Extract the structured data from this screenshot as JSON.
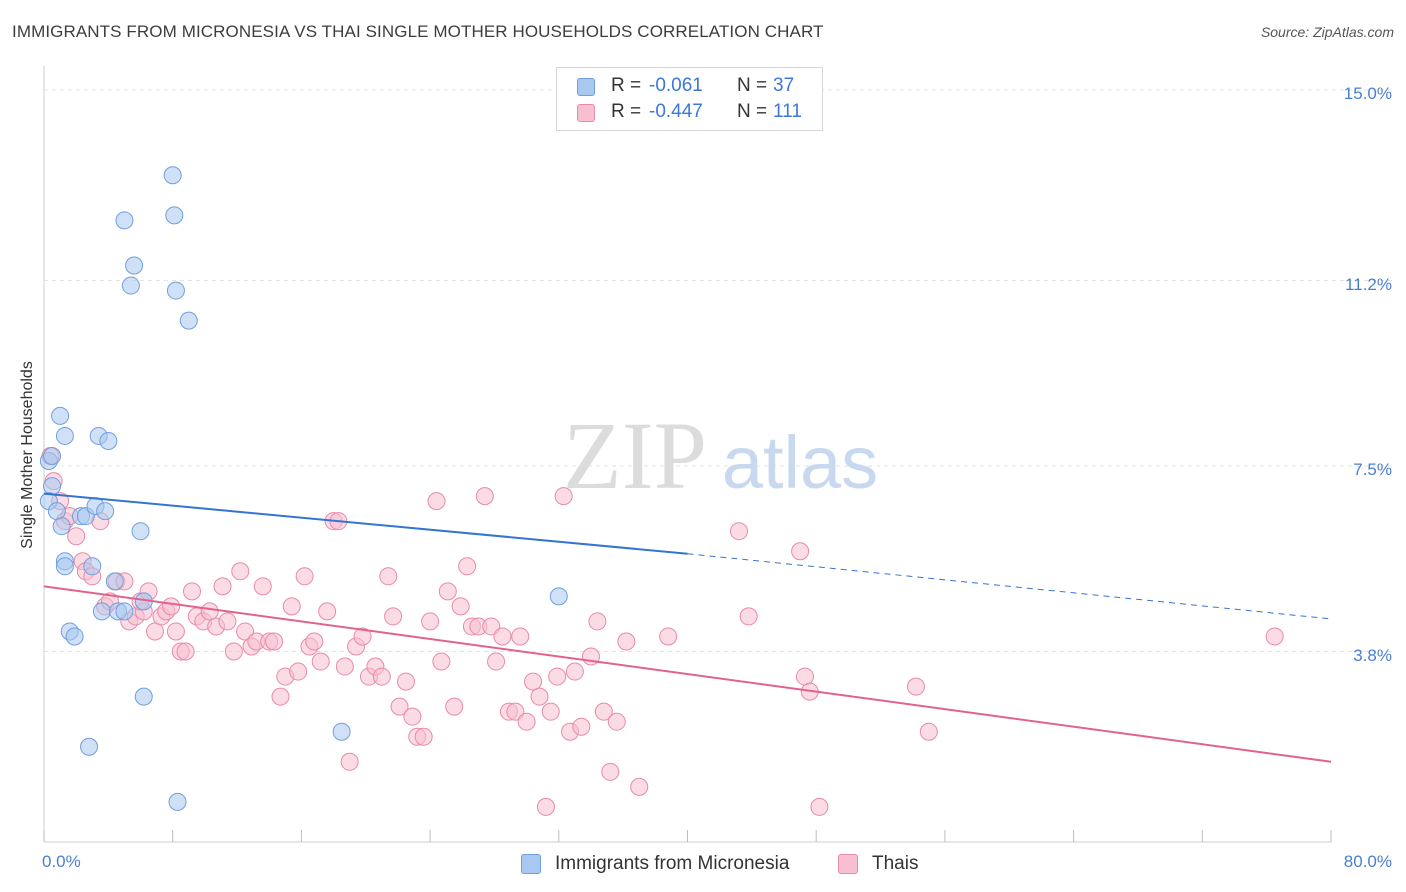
{
  "header": {
    "title": "IMMIGRANTS FROM MICRONESIA VS THAI SINGLE MOTHER HOUSEHOLDS CORRELATION CHART",
    "source": "Source: ZipAtlas.com"
  },
  "watermark": {
    "zip": "ZIP",
    "atlas": "atlas"
  },
  "legend": {
    "series": [
      {
        "r_label": "R =",
        "r_value": "-0.061",
        "n_label": "N =",
        "n_value": "37",
        "color": "#a9c8f0",
        "edge": "#6f9fde"
      },
      {
        "r_label": "R =",
        "r_value": "-0.447",
        "n_label": "N =",
        "n_value": "111",
        "color": "#f7bfd0",
        "edge": "#e88aa8"
      }
    ]
  },
  "bottom_legend": [
    {
      "label": "Immigrants from Micronesia",
      "color": "#a9c8f0",
      "edge": "#6f9fde"
    },
    {
      "label": "Thais",
      "color": "#f7bfd0",
      "edge": "#e88aa8"
    }
  ],
  "chart_data": {
    "type": "scatter",
    "title": "IMMIGRANTS FROM MICRONESIA VS THAI SINGLE MOTHER HOUSEHOLDS CORRELATION CHART",
    "xlabel": "",
    "ylabel": "Single Mother Households",
    "xlim": [
      0,
      80
    ],
    "ylim": [
      0,
      15.4
    ],
    "x_tick_labels": [
      "0.0%",
      "80.0%"
    ],
    "y_ticks": [
      {
        "value": 3.8,
        "label": "3.8%"
      },
      {
        "value": 7.5,
        "label": "7.5%"
      },
      {
        "value": 11.2,
        "label": "11.2%"
      },
      {
        "value": 15.0,
        "label": "15.0%"
      }
    ],
    "grid": true,
    "legend_position": "top-center",
    "series": [
      {
        "name": "Immigrants from Micronesia",
        "color": "#a9c8f0",
        "edge": "#6f9fde",
        "trend_color": "#3674d1",
        "trend": {
          "x0": 0,
          "y0": 6.95,
          "x1": 40,
          "y1": 5.75,
          "dash_x1": 80,
          "dash_y1": 4.45
        },
        "points": [
          [
            0.3,
            7.6
          ],
          [
            0.5,
            7.7
          ],
          [
            0.5,
            7.1
          ],
          [
            0.3,
            6.8
          ],
          [
            0.8,
            6.6
          ],
          [
            1.0,
            8.5
          ],
          [
            1.3,
            8.1
          ],
          [
            1.1,
            6.3
          ],
          [
            1.3,
            5.6
          ],
          [
            1.3,
            5.5
          ],
          [
            1.6,
            4.2
          ],
          [
            1.9,
            4.1
          ],
          [
            2.3,
            6.5
          ],
          [
            2.6,
            6.5
          ],
          [
            3.0,
            5.5
          ],
          [
            2.8,
            1.9
          ],
          [
            3.2,
            6.7
          ],
          [
            3.4,
            8.1
          ],
          [
            3.8,
            6.6
          ],
          [
            3.6,
            4.6
          ],
          [
            4.0,
            8.0
          ],
          [
            4.4,
            5.2
          ],
          [
            4.6,
            4.6
          ],
          [
            5.0,
            4.6
          ],
          [
            5.0,
            12.4
          ],
          [
            5.4,
            11.1
          ],
          [
            5.6,
            11.5
          ],
          [
            6.2,
            4.8
          ],
          [
            6.2,
            2.9
          ],
          [
            8.0,
            13.3
          ],
          [
            8.1,
            12.5
          ],
          [
            8.2,
            11.0
          ],
          [
            8.3,
            0.8
          ],
          [
            9.0,
            10.4
          ],
          [
            6.0,
            6.2
          ],
          [
            18.5,
            2.2
          ],
          [
            32.0,
            4.9
          ]
        ]
      },
      {
        "name": "Thais",
        "color": "#f7bfd0",
        "edge": "#e88aa8",
        "trend_color": "#e0638e",
        "trend": {
          "x0": 0,
          "y0": 5.1,
          "x1": 80,
          "y1": 1.6
        },
        "points": [
          [
            0.4,
            7.7
          ],
          [
            0.6,
            7.2
          ],
          [
            1.0,
            6.8
          ],
          [
            1.3,
            6.4
          ],
          [
            1.6,
            6.5
          ],
          [
            2.0,
            6.1
          ],
          [
            2.4,
            5.6
          ],
          [
            2.6,
            5.4
          ],
          [
            3.0,
            5.3
          ],
          [
            3.5,
            6.4
          ],
          [
            3.8,
            4.7
          ],
          [
            4.1,
            4.8
          ],
          [
            4.5,
            5.2
          ],
          [
            5.0,
            5.2
          ],
          [
            5.3,
            4.4
          ],
          [
            5.7,
            4.5
          ],
          [
            6.2,
            4.6
          ],
          [
            6.0,
            4.8
          ],
          [
            6.5,
            5.0
          ],
          [
            6.9,
            4.2
          ],
          [
            7.3,
            4.5
          ],
          [
            7.6,
            4.6
          ],
          [
            7.9,
            4.7
          ],
          [
            8.2,
            4.2
          ],
          [
            8.5,
            3.8
          ],
          [
            8.8,
            3.8
          ],
          [
            9.2,
            5.0
          ],
          [
            9.5,
            4.5
          ],
          [
            9.9,
            4.4
          ],
          [
            10.3,
            4.6
          ],
          [
            10.7,
            4.3
          ],
          [
            11.1,
            5.1
          ],
          [
            11.4,
            4.4
          ],
          [
            11.8,
            3.8
          ],
          [
            12.2,
            5.4
          ],
          [
            12.5,
            4.2
          ],
          [
            12.9,
            3.9
          ],
          [
            13.2,
            4.0
          ],
          [
            13.6,
            5.1
          ],
          [
            14.0,
            4.0
          ],
          [
            14.3,
            4.0
          ],
          [
            14.7,
            2.9
          ],
          [
            15.0,
            3.3
          ],
          [
            15.4,
            4.7
          ],
          [
            15.8,
            3.4
          ],
          [
            16.2,
            5.3
          ],
          [
            16.5,
            3.9
          ],
          [
            16.8,
            4.0
          ],
          [
            17.2,
            3.6
          ],
          [
            17.6,
            4.6
          ],
          [
            18.0,
            6.4
          ],
          [
            18.3,
            6.4
          ],
          [
            18.7,
            3.5
          ],
          [
            19.0,
            1.6
          ],
          [
            19.4,
            3.9
          ],
          [
            19.8,
            4.1
          ],
          [
            20.2,
            3.3
          ],
          [
            20.6,
            3.5
          ],
          [
            21.0,
            3.3
          ],
          [
            21.4,
            5.3
          ],
          [
            21.7,
            4.5
          ],
          [
            22.1,
            2.7
          ],
          [
            22.5,
            3.2
          ],
          [
            22.9,
            2.5
          ],
          [
            23.2,
            2.1
          ],
          [
            23.6,
            2.1
          ],
          [
            24.0,
            4.4
          ],
          [
            24.4,
            6.8
          ],
          [
            24.7,
            3.6
          ],
          [
            25.1,
            5.0
          ],
          [
            25.5,
            2.7
          ],
          [
            25.9,
            4.7
          ],
          [
            26.3,
            5.5
          ],
          [
            26.6,
            4.3
          ],
          [
            27.0,
            4.3
          ],
          [
            27.4,
            6.9
          ],
          [
            27.8,
            4.3
          ],
          [
            28.1,
            3.6
          ],
          [
            28.5,
            4.1
          ],
          [
            28.9,
            2.6
          ],
          [
            29.3,
            2.6
          ],
          [
            29.6,
            4.1
          ],
          [
            30.0,
            2.4
          ],
          [
            30.4,
            3.2
          ],
          [
            30.8,
            2.9
          ],
          [
            31.2,
            0.7
          ],
          [
            31.5,
            2.6
          ],
          [
            31.9,
            3.3
          ],
          [
            32.3,
            6.9
          ],
          [
            32.7,
            2.2
          ],
          [
            33.0,
            3.4
          ],
          [
            33.4,
            2.3
          ],
          [
            34.0,
            3.7
          ],
          [
            34.4,
            4.4
          ],
          [
            34.8,
            2.6
          ],
          [
            35.2,
            1.4
          ],
          [
            35.6,
            2.4
          ],
          [
            36.2,
            4.0
          ],
          [
            37.0,
            1.1
          ],
          [
            38.8,
            4.1
          ],
          [
            43.2,
            6.2
          ],
          [
            43.8,
            4.5
          ],
          [
            47.0,
            5.8
          ],
          [
            47.3,
            3.3
          ],
          [
            47.6,
            3.0
          ],
          [
            48.2,
            0.7
          ],
          [
            54.2,
            3.1
          ],
          [
            55.0,
            2.2
          ],
          [
            76.5,
            4.1
          ]
        ]
      }
    ]
  }
}
